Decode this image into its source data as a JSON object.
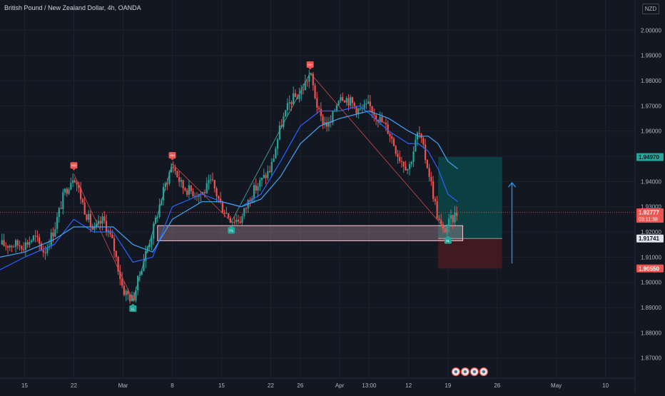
{
  "header": {
    "title": "British Pound / New Zealand Dollar, 4h, OANDA",
    "currency": "NZD"
  },
  "colors": {
    "bg": "#131722",
    "grid": "#1e222d",
    "up": "#26a69a",
    "down": "#ef5350",
    "ma_fast": "#2962ff",
    "ma_slow": "#42a5f5",
    "target": "#0b4a4a",
    "stop": "#4a1a20",
    "zone": "#f5c0cc"
  },
  "chart_data": {
    "type": "candlestick",
    "title": "British Pound / New Zealand Dollar, 4h, OANDA",
    "ylim": [
      1.862,
      2.012
    ],
    "y_ticks": [
      "2.00000",
      "1.99000",
      "1.98000",
      "1.97000",
      "1.96000",
      "1.95000",
      "1.94000",
      "1.93000",
      "1.92000",
      "1.91000",
      "1.90000",
      "1.89000",
      "1.88000",
      "1.87000"
    ],
    "y_tick_values": [
      2.0,
      1.99,
      1.98,
      1.97,
      1.96,
      1.95,
      1.94,
      1.93,
      1.92,
      1.91,
      1.9,
      1.89,
      1.88,
      1.87
    ],
    "x_ticks": [
      "15",
      "22",
      "Mar",
      "8",
      "15",
      "22",
      "26",
      "Apr",
      "13:00",
      "12",
      "19",
      "26",
      "May",
      "10"
    ],
    "x_tick_values": [
      0,
      5,
      10,
      15,
      20,
      25,
      28,
      32,
      35,
      39,
      43,
      48,
      54,
      59
    ],
    "xlim": [
      -2.5,
      62
    ],
    "path": [
      [
        -2.5,
        1.915
      ],
      [
        0,
        1.915
      ],
      [
        1,
        1.918
      ],
      [
        2,
        1.912
      ],
      [
        3,
        1.921
      ],
      [
        4,
        1.935
      ],
      [
        5,
        1.943
      ],
      [
        6,
        1.93
      ],
      [
        7,
        1.92
      ],
      [
        8,
        1.925
      ],
      [
        9,
        1.915
      ],
      [
        10,
        1.897
      ],
      [
        11,
        1.893
      ],
      [
        12,
        1.908
      ],
      [
        13,
        1.92
      ],
      [
        14,
        1.935
      ],
      [
        15,
        1.947
      ],
      [
        16,
        1.938
      ],
      [
        17,
        1.936
      ],
      [
        18,
        1.935
      ],
      [
        19,
        1.94
      ],
      [
        20,
        1.93
      ],
      [
        21,
        1.925
      ],
      [
        22,
        1.925
      ],
      [
        23,
        1.935
      ],
      [
        24,
        1.94
      ],
      [
        25,
        1.945
      ],
      [
        26,
        1.962
      ],
      [
        27,
        1.972
      ],
      [
        28,
        1.975
      ],
      [
        29,
        1.983
      ],
      [
        30,
        1.965
      ],
      [
        31,
        1.962
      ],
      [
        32,
        1.975
      ],
      [
        33,
        1.972
      ],
      [
        34,
        1.968
      ],
      [
        35,
        1.97
      ],
      [
        36,
        1.965
      ],
      [
        37,
        1.96
      ],
      [
        38,
        1.95
      ],
      [
        39,
        1.945
      ],
      [
        40,
        1.96
      ],
      [
        41,
        1.945
      ],
      [
        42,
        1.925
      ],
      [
        42.5,
        1.92
      ],
      [
        43,
        1.923
      ],
      [
        44,
        1.928
      ]
    ],
    "series": [
      {
        "name": "",
        "values": [
          [
            -2.5,
            1.905
          ],
          [
            0,
            1.91
          ],
          [
            3,
            1.915
          ],
          [
            5,
            1.925
          ],
          [
            7,
            1.92
          ],
          [
            9,
            1.92
          ],
          [
            11,
            1.908
          ],
          [
            13,
            1.91
          ],
          [
            15,
            1.93
          ],
          [
            18,
            1.935
          ],
          [
            20,
            1.932
          ],
          [
            22,
            1.93
          ],
          [
            24,
            1.935
          ],
          [
            26,
            1.948
          ],
          [
            28,
            1.962
          ],
          [
            30,
            1.968
          ],
          [
            32,
            1.968
          ],
          [
            34,
            1.97
          ],
          [
            35,
            1.967
          ],
          [
            37,
            1.96
          ],
          [
            39,
            1.955
          ],
          [
            40,
            1.955
          ],
          [
            41,
            1.952
          ],
          [
            42,
            1.945
          ],
          [
            43,
            1.935
          ],
          [
            44,
            1.932
          ]
        ]
      },
      {
        "name": "",
        "values": [
          [
            -2.5,
            1.91
          ],
          [
            0,
            1.912
          ],
          [
            3,
            1.917
          ],
          [
            5,
            1.922
          ],
          [
            7,
            1.922
          ],
          [
            9,
            1.922
          ],
          [
            11,
            1.915
          ],
          [
            13,
            1.912
          ],
          [
            15,
            1.925
          ],
          [
            18,
            1.932
          ],
          [
            20,
            1.932
          ],
          [
            22,
            1.93
          ],
          [
            24,
            1.933
          ],
          [
            26,
            1.942
          ],
          [
            28,
            1.955
          ],
          [
            30,
            1.962
          ],
          [
            32,
            1.965
          ],
          [
            34,
            1.967
          ],
          [
            35,
            1.968
          ],
          [
            37,
            1.965
          ],
          [
            39,
            1.96
          ],
          [
            40,
            1.958
          ],
          [
            41,
            1.958
          ],
          [
            42,
            1.955
          ],
          [
            43,
            1.948
          ],
          [
            44,
            1.945
          ]
        ]
      }
    ],
    "zigzag": [
      [
        5,
        1.943
      ],
      [
        11,
        1.893
      ],
      [
        15,
        1.947
      ],
      [
        21,
        1.924
      ],
      [
        29,
        1.983
      ],
      [
        43,
        1.92
      ]
    ],
    "pivot_markers": [
      {
        "x": 5,
        "y": 1.943,
        "side": "top",
        "label": "HH"
      },
      {
        "x": 11,
        "y": 1.893,
        "side": "bottom",
        "label": "LL"
      },
      {
        "x": 15,
        "y": 1.947,
        "side": "top",
        "label": "HH"
      },
      {
        "x": 21,
        "y": 1.924,
        "side": "bottom",
        "label": "HL"
      },
      {
        "x": 29,
        "y": 1.983,
        "side": "top",
        "label": "HH"
      },
      {
        "x": 43,
        "y": 1.92,
        "side": "bottom",
        "label": "HL"
      }
    ],
    "demand_zone": {
      "x0": 13.5,
      "x1": 44.5,
      "y0": 1.9165,
      "y1": 1.9225
    },
    "position": {
      "x0": 42,
      "x1": 48.5,
      "entry": 1.91741,
      "target": 1.9497,
      "stop": 1.9055
    },
    "arrow": {
      "x": 49.5,
      "y_from": 1.9075,
      "y_to": 1.9395
    },
    "current_price_line": 1.92777,
    "price_labels": [
      {
        "value": 1.9497,
        "text": "1.94970",
        "kind": "target"
      },
      {
        "value": 1.92777,
        "text": "1.92777",
        "sub": "03:11:38",
        "kind": "current"
      },
      {
        "value": 1.91741,
        "text": "1.91741",
        "kind": "entry"
      },
      {
        "value": 1.9055,
        "text": "1.90550",
        "kind": "stop"
      }
    ],
    "event_icons": {
      "x": 43.8,
      "count": 4
    }
  }
}
